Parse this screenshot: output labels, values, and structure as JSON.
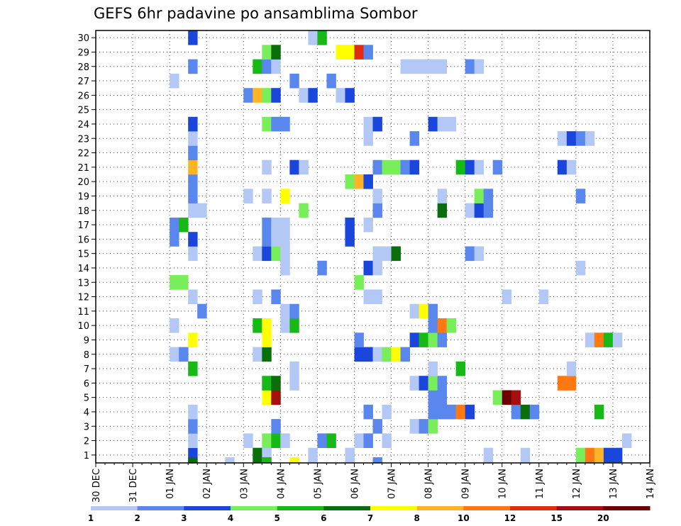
{
  "chart_data": {
    "type": "heatmap",
    "title": "GEFS 6hr padavine po ansamblima Sombor",
    "xlabel": "",
    "ylabel": "",
    "x_tick_labels": [
      "30 DEC",
      "31 DEC",
      "01 JAN",
      "02 JAN",
      "03 JAN",
      "04 JAN",
      "05 JAN",
      "06 JAN",
      "07 JAN",
      "08 JAN",
      "09 JAN",
      "10 JAN",
      "11 JAN",
      "12 JAN",
      "13 JAN",
      "14 JAN"
    ],
    "x_unit": "6-hour step (4 per day, step 0 = 30 DEC 00Z)",
    "xlim": [
      0,
      60
    ],
    "y_tick_labels": [
      "1",
      "2",
      "3",
      "4",
      "5",
      "6",
      "7",
      "8",
      "9",
      "10",
      "11",
      "12",
      "13",
      "14",
      "15",
      "16",
      "17",
      "18",
      "19",
      "20",
      "21",
      "22",
      "23",
      "24",
      "25",
      "26",
      "27",
      "28",
      "29",
      "30"
    ],
    "ylim": [
      0,
      30
    ],
    "grid": true,
    "colorbar": {
      "ticks": [
        "1",
        "2",
        "3",
        "4",
        "5",
        "6",
        "7",
        "8",
        "10",
        "12",
        "15",
        "20"
      ],
      "colors": [
        "#b4c8f5",
        "#5a87ee",
        "#1a46db",
        "#78ee5a",
        "#17b917",
        "#0a6e0a",
        "#ffff00",
        "#ffb428",
        "#ff7814",
        "#e12d0f",
        "#a50f0f",
        "#6e0000"
      ],
      "placement": "bottom"
    },
    "cells_description": "Each cell: [member, 6h step index, color class 1..12 per colorbar]",
    "cells": [
      [
        1,
        10,
        3
      ],
      [
        1,
        17,
        6
      ],
      [
        1,
        18,
        1
      ],
      [
        1,
        23,
        1
      ],
      [
        1,
        27,
        1
      ],
      [
        1,
        42,
        1
      ],
      [
        1,
        46,
        1
      ],
      [
        1,
        52,
        4
      ],
      [
        1,
        53,
        9
      ],
      [
        1,
        54,
        8
      ],
      [
        1,
        55,
        3
      ],
      [
        1,
        56,
        3
      ],
      [
        2,
        10,
        1
      ],
      [
        2,
        16,
        1
      ],
      [
        2,
        18,
        4
      ],
      [
        2,
        19,
        5
      ],
      [
        2,
        20,
        1
      ],
      [
        2,
        24,
        2
      ],
      [
        2,
        25,
        5
      ],
      [
        2,
        28,
        1
      ],
      [
        2,
        29,
        2
      ],
      [
        2,
        31,
        1
      ],
      [
        2,
        57,
        1
      ],
      [
        3,
        10,
        2
      ],
      [
        3,
        19,
        2
      ],
      [
        3,
        30,
        2
      ],
      [
        3,
        34,
        1
      ],
      [
        3,
        35,
        2
      ],
      [
        3,
        36,
        4
      ],
      [
        4,
        10,
        1
      ],
      [
        4,
        29,
        2
      ],
      [
        4,
        31,
        1
      ],
      [
        4,
        36,
        2
      ],
      [
        4,
        37,
        2
      ],
      [
        4,
        38,
        2
      ],
      [
        4,
        39,
        9
      ],
      [
        4,
        40,
        3
      ],
      [
        4,
        45,
        2
      ],
      [
        4,
        46,
        6
      ],
      [
        4,
        47,
        2
      ],
      [
        4,
        54,
        5
      ],
      [
        5,
        18,
        7
      ],
      [
        5,
        19,
        11
      ],
      [
        5,
        36,
        2
      ],
      [
        5,
        37,
        2
      ],
      [
        5,
        43,
        4
      ],
      [
        5,
        44,
        12
      ],
      [
        5,
        45,
        11
      ],
      [
        6,
        18,
        5
      ],
      [
        6,
        19,
        6
      ],
      [
        6,
        21,
        1
      ],
      [
        6,
        34,
        1
      ],
      [
        6,
        35,
        3
      ],
      [
        6,
        36,
        4
      ],
      [
        6,
        37,
        2
      ],
      [
        6,
        50,
        9
      ],
      [
        6,
        51,
        9
      ],
      [
        7,
        10,
        5
      ],
      [
        7,
        21,
        1
      ],
      [
        7,
        36,
        1
      ],
      [
        7,
        39,
        5
      ],
      [
        7,
        51,
        1
      ],
      [
        8,
        8,
        1
      ],
      [
        8,
        9,
        2
      ],
      [
        8,
        17,
        1
      ],
      [
        8,
        18,
        6
      ],
      [
        8,
        28,
        3
      ],
      [
        8,
        29,
        3
      ],
      [
        8,
        30,
        1
      ],
      [
        8,
        31,
        4
      ],
      [
        8,
        32,
        7
      ],
      [
        8,
        33,
        2
      ],
      [
        9,
        10,
        7
      ],
      [
        9,
        18,
        7
      ],
      [
        9,
        28,
        2
      ],
      [
        9,
        34,
        3
      ],
      [
        9,
        35,
        5
      ],
      [
        9,
        36,
        4
      ],
      [
        9,
        37,
        2
      ],
      [
        9,
        53,
        1
      ],
      [
        9,
        54,
        9
      ],
      [
        9,
        55,
        5
      ],
      [
        9,
        56,
        1
      ],
      [
        10,
        8,
        1
      ],
      [
        10,
        17,
        5
      ],
      [
        10,
        18,
        7
      ],
      [
        10,
        20,
        1
      ],
      [
        10,
        21,
        5
      ],
      [
        10,
        36,
        2
      ],
      [
        10,
        37,
        9
      ],
      [
        10,
        38,
        4
      ],
      [
        11,
        11,
        2
      ],
      [
        11,
        20,
        1
      ],
      [
        11,
        21,
        2
      ],
      [
        11,
        34,
        1
      ],
      [
        11,
        35,
        7
      ],
      [
        11,
        36,
        2
      ],
      [
        12,
        10,
        1
      ],
      [
        12,
        17,
        1
      ],
      [
        12,
        19,
        2
      ],
      [
        12,
        29,
        1
      ],
      [
        12,
        30,
        1
      ],
      [
        12,
        44,
        1
      ],
      [
        12,
        48,
        1
      ],
      [
        13,
        8,
        4
      ],
      [
        13,
        9,
        4
      ],
      [
        13,
        28,
        4
      ],
      [
        14,
        20,
        1
      ],
      [
        14,
        24,
        2
      ],
      [
        14,
        29,
        3
      ],
      [
        14,
        30,
        1
      ],
      [
        14,
        52,
        1
      ],
      [
        15,
        10,
        1
      ],
      [
        15,
        17,
        1
      ],
      [
        15,
        18,
        3
      ],
      [
        15,
        19,
        4
      ],
      [
        15,
        20,
        1
      ],
      [
        15,
        30,
        1
      ],
      [
        15,
        31,
        1
      ],
      [
        15,
        32,
        6
      ],
      [
        15,
        40,
        2
      ],
      [
        15,
        41,
        1
      ],
      [
        16,
        8,
        2
      ],
      [
        16,
        10,
        3
      ],
      [
        16,
        18,
        2
      ],
      [
        16,
        19,
        1
      ],
      [
        16,
        20,
        1
      ],
      [
        16,
        27,
        3
      ],
      [
        17,
        8,
        2
      ],
      [
        17,
        9,
        5
      ],
      [
        17,
        18,
        2
      ],
      [
        17,
        19,
        1
      ],
      [
        17,
        20,
        1
      ],
      [
        17,
        27,
        3
      ],
      [
        17,
        29,
        1
      ],
      [
        18,
        10,
        1
      ],
      [
        18,
        11,
        1
      ],
      [
        18,
        22,
        4
      ],
      [
        18,
        30,
        2
      ],
      [
        18,
        37,
        6
      ],
      [
        18,
        40,
        1
      ],
      [
        18,
        41,
        3
      ],
      [
        18,
        42,
        2
      ],
      [
        19,
        10,
        2
      ],
      [
        19,
        16,
        1
      ],
      [
        19,
        18,
        1
      ],
      [
        19,
        20,
        7
      ],
      [
        19,
        30,
        1
      ],
      [
        19,
        37,
        1
      ],
      [
        19,
        41,
        4
      ],
      [
        19,
        42,
        2
      ],
      [
        19,
        52,
        2
      ],
      [
        20,
        10,
        2
      ],
      [
        20,
        27,
        4
      ],
      [
        20,
        28,
        8
      ],
      [
        20,
        29,
        3
      ],
      [
        21,
        10,
        8
      ],
      [
        21,
        18,
        1
      ],
      [
        21,
        21,
        3
      ],
      [
        21,
        22,
        1
      ],
      [
        21,
        30,
        2
      ],
      [
        21,
        31,
        4
      ],
      [
        21,
        32,
        4
      ],
      [
        21,
        33,
        2
      ],
      [
        21,
        34,
        3
      ],
      [
        21,
        39,
        5
      ],
      [
        21,
        40,
        3
      ],
      [
        21,
        41,
        1
      ],
      [
        21,
        43,
        2
      ],
      [
        21,
        50,
        3
      ],
      [
        21,
        51,
        1
      ],
      [
        22,
        10,
        2
      ],
      [
        23,
        10,
        1
      ],
      [
        23,
        29,
        1
      ],
      [
        23,
        34,
        2
      ],
      [
        23,
        50,
        1
      ],
      [
        23,
        51,
        3
      ],
      [
        23,
        52,
        2
      ],
      [
        23,
        53,
        1
      ],
      [
        24,
        10,
        3
      ],
      [
        24,
        18,
        4
      ],
      [
        24,
        19,
        2
      ],
      [
        24,
        20,
        2
      ],
      [
        24,
        29,
        1
      ],
      [
        24,
        30,
        3
      ],
      [
        24,
        36,
        3
      ],
      [
        24,
        37,
        1
      ],
      [
        24,
        38,
        1
      ],
      [
        26,
        16,
        2
      ],
      [
        26,
        17,
        8
      ],
      [
        26,
        18,
        4
      ],
      [
        26,
        19,
        3
      ],
      [
        26,
        22,
        1
      ],
      [
        26,
        23,
        3
      ],
      [
        26,
        26,
        1
      ],
      [
        26,
        27,
        3
      ],
      [
        27,
        8,
        1
      ],
      [
        27,
        21,
        2
      ],
      [
        27,
        25,
        2
      ],
      [
        28,
        10,
        2
      ],
      [
        28,
        17,
        5
      ],
      [
        28,
        18,
        2
      ],
      [
        28,
        19,
        1
      ],
      [
        28,
        33,
        1
      ],
      [
        28,
        34,
        1
      ],
      [
        28,
        35,
        1
      ],
      [
        28,
        36,
        1
      ],
      [
        28,
        37,
        1
      ],
      [
        28,
        40,
        2
      ],
      [
        28,
        41,
        1
      ],
      [
        29,
        18,
        4
      ],
      [
        29,
        19,
        6
      ],
      [
        29,
        26,
        7
      ],
      [
        29,
        27,
        7
      ],
      [
        29,
        28,
        10
      ],
      [
        29,
        29,
        2
      ],
      [
        30,
        10,
        3
      ],
      [
        30,
        23,
        1
      ],
      [
        30,
        24,
        5
      ]
    ],
    "extra_marks_description": "Partial cells drawn below the 1-member row: [6h step index, color class]",
    "extra_marks": [
      [
        10,
        6
      ],
      [
        14,
        1
      ],
      [
        18,
        5
      ],
      [
        21,
        7
      ],
      [
        30,
        2
      ]
    ]
  }
}
